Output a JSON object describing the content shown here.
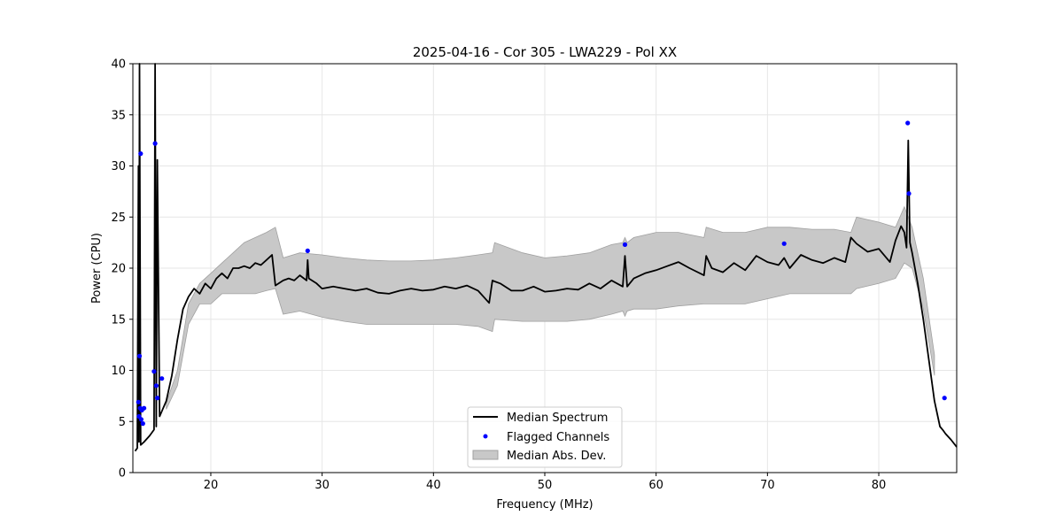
{
  "chart_data": {
    "type": "line",
    "title": "2025-04-16 - Cor 305 - LWA229 - Pol XX",
    "xlabel": "Frequency (MHz)",
    "ylabel": "Power (CPU)",
    "xlim": [
      13,
      87
    ],
    "ylim": [
      0,
      40
    ],
    "xticks": [
      20,
      30,
      40,
      50,
      60,
      70,
      80
    ],
    "yticks": [
      0,
      5,
      10,
      15,
      20,
      25,
      30,
      35,
      40
    ],
    "grid": true,
    "legend_position": "bottom-center",
    "colors": {
      "median": "#000000",
      "flagged": "#0000ff",
      "mad": "#c8c8c8",
      "mad_edge": "#a0a0a0",
      "grid": "#e6e6e6"
    },
    "legend": [
      "Median Spectrum",
      "Flagged Channels",
      "Median Abs. Dev."
    ],
    "series": [
      {
        "name": "Median Spectrum",
        "kind": "line",
        "x": [
          13.2,
          13.4,
          13.5,
          13.55,
          13.6,
          13.7,
          13.8,
          13.9,
          14.0,
          14.5,
          14.9,
          15.0,
          15.1,
          15.2,
          15.4,
          15.6,
          15.8,
          16.0,
          16.5,
          17.0,
          17.5,
          18.0,
          18.5,
          19.0,
          19.5,
          20.0,
          20.5,
          21.0,
          21.5,
          22.0,
          22.5,
          23.0,
          23.5,
          24.0,
          24.5,
          25.0,
          25.5,
          25.8,
          26.5,
          27.0,
          27.5,
          28.0,
          28.6,
          28.7,
          28.8,
          29.5,
          30.0,
          31.0,
          32.0,
          33.0,
          34.0,
          35.0,
          36.0,
          37.0,
          38.0,
          39.0,
          40.0,
          41.0,
          42.0,
          43.0,
          44.0,
          45.0,
          45.3,
          45.5,
          46.0,
          47.0,
          48.0,
          49.0,
          50.0,
          51.0,
          52.0,
          53.0,
          54.0,
          55.0,
          56.0,
          57.0,
          57.2,
          57.4,
          58.0,
          59.0,
          60.0,
          61.0,
          62.0,
          63.0,
          64.3,
          64.5,
          65.0,
          66.0,
          67.0,
          68.0,
          69.0,
          70.0,
          71.0,
          71.5,
          72.0,
          73.0,
          74.0,
          75.0,
          76.0,
          77.0,
          77.5,
          78.0,
          79.0,
          80.0,
          81.0,
          81.5,
          82.0,
          82.3,
          82.5,
          82.65,
          82.8,
          83.0,
          83.5,
          84.0,
          84.5,
          85.0,
          85.5,
          85.8,
          86.0,
          86.5,
          87.0
        ],
        "y": [
          2.1,
          2.4,
          30.0,
          3.0,
          40.0,
          2.7,
          2.8,
          2.9,
          3.0,
          3.6,
          4.2,
          40.0,
          4.5,
          30.6,
          5.5,
          6.0,
          6.5,
          7.0,
          9.5,
          13.0,
          16.0,
          17.2,
          18.0,
          17.5,
          18.5,
          18.0,
          19.0,
          19.5,
          19.0,
          20.0,
          20.0,
          20.2,
          20.0,
          20.5,
          20.3,
          20.8,
          21.3,
          18.3,
          18.8,
          19.0,
          18.8,
          19.3,
          18.8,
          20.8,
          19.0,
          18.5,
          18.0,
          18.2,
          18.0,
          17.8,
          18.0,
          17.6,
          17.5,
          17.8,
          18.0,
          17.8,
          17.9,
          18.2,
          18.0,
          18.3,
          17.8,
          16.6,
          18.8,
          18.7,
          18.5,
          17.8,
          17.8,
          18.2,
          17.7,
          17.8,
          18.0,
          17.9,
          18.5,
          18.0,
          18.8,
          18.2,
          21.2,
          18.2,
          19.0,
          19.5,
          19.8,
          20.2,
          20.6,
          20.0,
          19.3,
          21.2,
          20.0,
          19.6,
          20.5,
          19.8,
          21.2,
          20.6,
          20.3,
          21.0,
          20.0,
          21.3,
          20.8,
          20.5,
          21.0,
          20.6,
          23.0,
          22.4,
          21.6,
          21.9,
          20.6,
          22.7,
          24.1,
          23.5,
          22.0,
          32.5,
          22.5,
          21.5,
          18.5,
          15.0,
          11.0,
          7.0,
          4.5,
          4.1,
          3.8,
          3.2,
          2.5
        ]
      },
      {
        "name": "Median Abs. Dev.",
        "kind": "band",
        "x": [
          16.0,
          17.0,
          18.0,
          19.0,
          20.0,
          21.0,
          22.0,
          23.0,
          24.0,
          25.0,
          25.8,
          26.5,
          28.0,
          30.0,
          32.0,
          34.0,
          36.0,
          38.0,
          40.0,
          42.0,
          44.0,
          45.3,
          45.5,
          48.0,
          50.0,
          52.0,
          54.0,
          56.0,
          57.0,
          57.2,
          57.4,
          58.0,
          60.0,
          62.0,
          64.3,
          64.5,
          66.0,
          68.0,
          70.0,
          72.0,
          74.0,
          76.0,
          77.5,
          78.0,
          80.0,
          81.5,
          82.3,
          83.0,
          84.0,
          85.0
        ],
        "upper": [
          6.8,
          10.0,
          16.5,
          18.5,
          19.5,
          20.5,
          21.5,
          22.5,
          23.0,
          23.5,
          24.0,
          21.0,
          21.5,
          21.3,
          21.0,
          20.8,
          20.7,
          20.7,
          20.8,
          21.0,
          21.3,
          21.5,
          22.5,
          21.5,
          21.0,
          21.2,
          21.5,
          22.3,
          22.5,
          23.0,
          22.5,
          23.0,
          23.5,
          23.5,
          23.0,
          24.0,
          23.5,
          23.5,
          24.0,
          24.0,
          23.8,
          23.8,
          23.5,
          25.0,
          24.5,
          24.0,
          26.0,
          24.0,
          19.0,
          11.5
        ],
        "lower": [
          6.2,
          8.5,
          14.5,
          16.5,
          16.5,
          17.5,
          17.5,
          17.5,
          17.5,
          17.8,
          18.0,
          15.5,
          15.8,
          15.2,
          14.8,
          14.5,
          14.5,
          14.5,
          14.5,
          14.5,
          14.3,
          13.8,
          15.0,
          14.8,
          14.8,
          14.8,
          15.0,
          15.5,
          15.8,
          15.3,
          15.8,
          16.0,
          16.0,
          16.3,
          16.5,
          16.5,
          16.5,
          16.5,
          17.0,
          17.5,
          17.5,
          17.5,
          17.5,
          18.0,
          18.5,
          19.0,
          20.5,
          20.0,
          16.0,
          9.5
        ]
      },
      {
        "name": "Flagged Channels",
        "kind": "scatter",
        "x": [
          13.5,
          13.55,
          13.6,
          13.65,
          13.7,
          13.75,
          13.8,
          13.9,
          14.0,
          14.9,
          15.0,
          15.1,
          15.2,
          15.6,
          28.7,
          57.2,
          71.5,
          82.6,
          82.7,
          85.9
        ],
        "y": [
          6.9,
          5.5,
          11.4,
          6.3,
          31.2,
          5.2,
          6.1,
          4.8,
          6.3,
          9.9,
          32.2,
          8.5,
          7.3,
          9.2,
          21.7,
          22.3,
          22.4,
          34.2,
          27.3,
          7.3
        ]
      }
    ]
  }
}
